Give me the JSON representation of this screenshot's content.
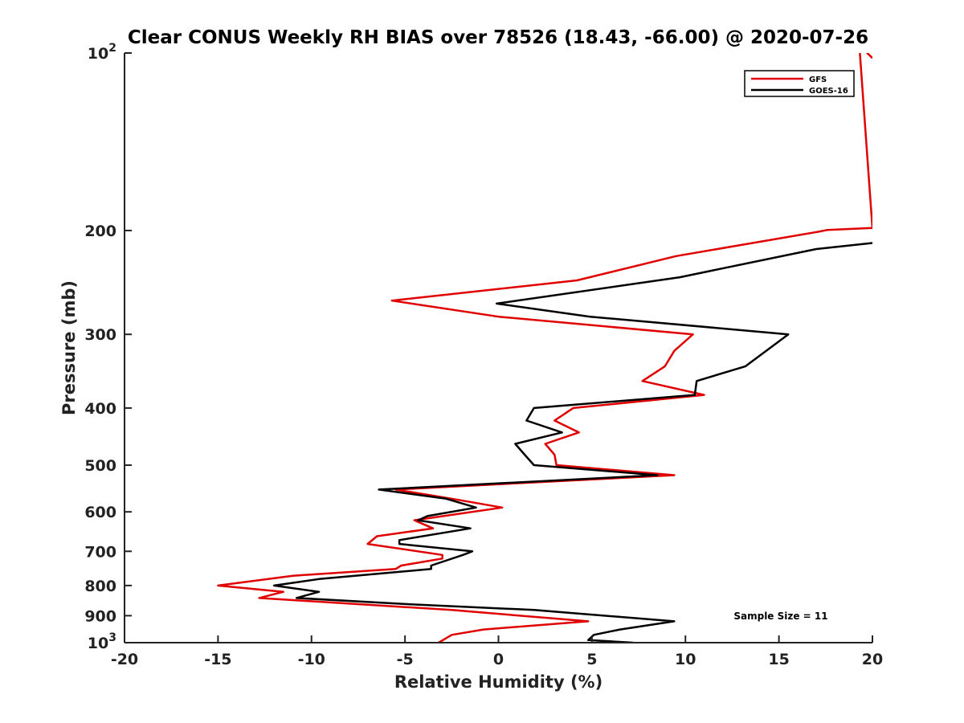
{
  "chart_data": {
    "type": "line",
    "title": "Clear CONUS Weekly RH BIAS over 78526 (18.43, -66.00) @ 2020-07-26",
    "xlabel": "Relative Humidity (%)",
    "ylabel": "Pressure (mb)",
    "xlim": [
      -20,
      20
    ],
    "ylim": [
      100,
      1000
    ],
    "y_scale": "log",
    "y_reversed": true,
    "x_ticks": [
      "-20",
      "-15",
      "-10",
      "-5",
      "0",
      "5",
      "10",
      "15",
      "20"
    ],
    "y_ticks": [
      {
        "value": 100,
        "base": "10",
        "exp": "2"
      },
      {
        "value": 200,
        "label": "200"
      },
      {
        "value": 300,
        "label": "300"
      },
      {
        "value": 400,
        "label": "400"
      },
      {
        "value": 500,
        "label": "500"
      },
      {
        "value": 600,
        "label": "600"
      },
      {
        "value": 700,
        "label": "700"
      },
      {
        "value": 800,
        "label": "800"
      },
      {
        "value": 900,
        "label": "900"
      },
      {
        "value": 1000,
        "base": "10",
        "exp": "3"
      }
    ],
    "grid": false,
    "legend_position": "top-right",
    "annotation": "Sample Size = 11",
    "series": [
      {
        "name": "GFS",
        "color": "#e00000",
        "points": [
          [
            20,
            102
          ],
          [
            19.3,
            97
          ],
          [
            20,
            198
          ],
          [
            17.6,
            199.5
          ],
          [
            17.1,
            201
          ],
          [
            9.5,
            221
          ],
          [
            4.2,
            243
          ],
          [
            -5.7,
            263
          ],
          [
            0,
            280
          ],
          [
            10.4,
            300
          ],
          [
            9.4,
            320
          ],
          [
            8.9,
            340
          ],
          [
            7.7,
            360
          ],
          [
            11.0,
            380
          ],
          [
            4.0,
            400
          ],
          [
            3.0,
            420
          ],
          [
            4.3,
            440
          ],
          [
            2.5,
            460
          ],
          [
            3.0,
            480
          ],
          [
            3.1,
            500
          ],
          [
            9.4,
            520
          ],
          [
            -5.5,
            550
          ],
          [
            -2.5,
            570
          ],
          [
            0.2,
            590
          ],
          [
            -4.5,
            620
          ],
          [
            -3.5,
            640
          ],
          [
            -6.5,
            660
          ],
          [
            -7.0,
            680
          ],
          [
            -3.0,
            710
          ],
          [
            -3.0,
            720
          ],
          [
            -5.2,
            740
          ],
          [
            -5.5,
            750
          ],
          [
            -11.0,
            770
          ],
          [
            -15.0,
            800
          ],
          [
            -11.5,
            820
          ],
          [
            -12.8,
            840
          ],
          [
            -2.5,
            880
          ],
          [
            4.8,
            920
          ],
          [
            -0.8,
            950
          ],
          [
            -2.5,
            970
          ],
          [
            -3.2,
            1000
          ]
        ]
      },
      {
        "name": "GOES-16",
        "color": "#000000",
        "points": [
          [
            20,
            210
          ],
          [
            17.0,
            215
          ],
          [
            9.7,
            240
          ],
          [
            -0.1,
            266
          ],
          [
            4.9,
            280
          ],
          [
            15.5,
            300
          ],
          [
            13.2,
            340
          ],
          [
            10.6,
            360
          ],
          [
            10.5,
            380
          ],
          [
            1.9,
            400
          ],
          [
            1.5,
            420
          ],
          [
            3.4,
            440
          ],
          [
            0.9,
            460
          ],
          [
            1.4,
            480
          ],
          [
            1.9,
            500
          ],
          [
            8.5,
            520
          ],
          [
            -6.4,
            550
          ],
          [
            -2.8,
            570
          ],
          [
            -1.2,
            590
          ],
          [
            -3.8,
            610
          ],
          [
            -4.3,
            620
          ],
          [
            -1.5,
            640
          ],
          [
            -5.3,
            670
          ],
          [
            -5.3,
            680
          ],
          [
            -1.4,
            700
          ],
          [
            -1.9,
            710
          ],
          [
            -3.6,
            740
          ],
          [
            -3.6,
            750
          ],
          [
            -9.6,
            780
          ],
          [
            -12.0,
            800
          ],
          [
            -9.6,
            820
          ],
          [
            -10.8,
            840
          ],
          [
            -5.0,
            860
          ],
          [
            1.9,
            880
          ],
          [
            9.4,
            920
          ],
          [
            6.5,
            950
          ],
          [
            5.1,
            970
          ],
          [
            4.8,
            990
          ],
          [
            7.2,
            1000
          ]
        ]
      }
    ]
  }
}
